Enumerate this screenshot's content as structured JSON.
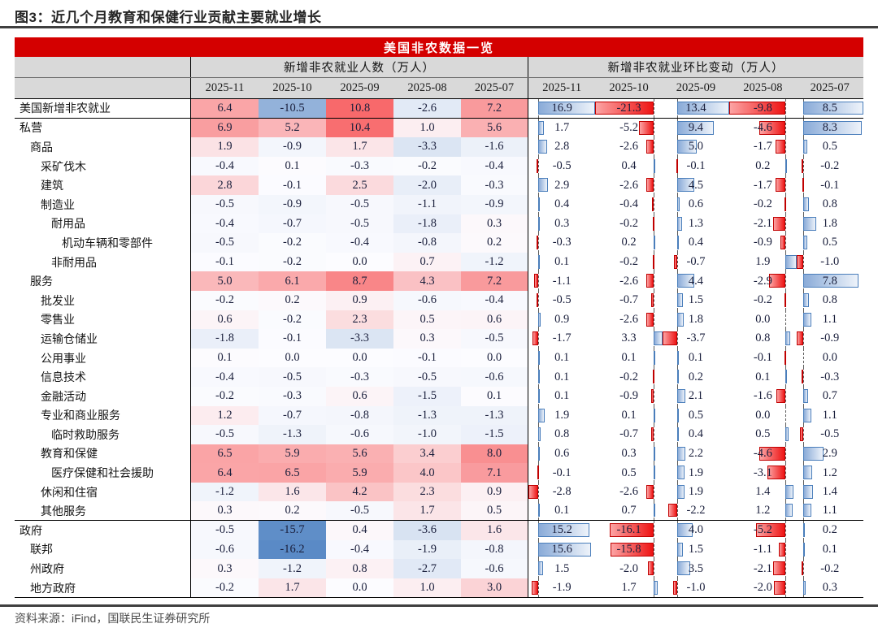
{
  "figure_title": "图3：近几个月教育和保健行业贡献主要就业增长",
  "source_note": "资料来源：iFind，国联民生证券研究所",
  "chart_data": {
    "type": "table",
    "title": "美国非农数据一览",
    "column_groups": [
      {
        "label": "新增非农就业人数（万人）",
        "months": [
          "2025-11",
          "2025-10",
          "2025-09",
          "2025-08",
          "2025-07"
        ]
      },
      {
        "label": "新增非农就业环比变动（万人）",
        "months": [
          "2025-11",
          "2025-10",
          "2025-09",
          "2025-08",
          "2025-07"
        ]
      }
    ],
    "rows": [
      {
        "label": "美国新增非农就业",
        "indent": 0,
        "counts": [
          6.4,
          -10.5,
          10.8,
          -2.6,
          7.2
        ],
        "changes": [
          16.9,
          -21.3,
          13.4,
          -9.8,
          8.5
        ]
      },
      {
        "label": "私营",
        "indent": 0,
        "counts": [
          6.9,
          5.2,
          10.4,
          1.0,
          5.6
        ],
        "changes": [
          1.7,
          -5.2,
          9.4,
          -4.6,
          8.3
        ]
      },
      {
        "label": "商品",
        "indent": 1,
        "counts": [
          1.9,
          -0.9,
          1.7,
          -3.3,
          -1.6
        ],
        "changes": [
          2.8,
          -2.6,
          5.0,
          -1.7,
          0.5
        ]
      },
      {
        "label": "采矿伐木",
        "indent": 2,
        "counts": [
          -0.4,
          0.1,
          -0.3,
          -0.2,
          -0.4
        ],
        "changes": [
          -0.5,
          0.4,
          -0.1,
          0.2,
          -0.2
        ]
      },
      {
        "label": "建筑",
        "indent": 2,
        "counts": [
          2.8,
          -0.1,
          2.5,
          -2.0,
          -0.3
        ],
        "changes": [
          2.9,
          -2.6,
          4.5,
          -1.7,
          -0.1
        ]
      },
      {
        "label": "制造业",
        "indent": 2,
        "counts": [
          -0.5,
          -0.9,
          -0.5,
          -1.1,
          -0.9
        ],
        "changes": [
          0.4,
          -0.4,
          0.6,
          -0.2,
          0.8
        ]
      },
      {
        "label": "耐用品",
        "indent": 3,
        "counts": [
          -0.4,
          -0.7,
          -0.5,
          -1.8,
          0.3
        ],
        "changes": [
          0.3,
          -0.2,
          1.3,
          -2.1,
          1.8
        ]
      },
      {
        "label": "机动车辆和零部件",
        "indent": 4,
        "counts": [
          -0.5,
          -0.2,
          -0.4,
          -0.8,
          0.2
        ],
        "changes": [
          -0.3,
          0.2,
          0.4,
          -0.9,
          0.5
        ]
      },
      {
        "label": "非耐用品",
        "indent": 3,
        "counts": [
          -0.1,
          -0.2,
          0.0,
          0.7,
          -1.2
        ],
        "changes": [
          0.1,
          -0.2,
          -0.7,
          1.9,
          -1.0
        ]
      },
      {
        "label": "服务",
        "indent": 1,
        "counts": [
          5.0,
          6.1,
          8.7,
          4.3,
          7.2
        ],
        "changes": [
          -1.1,
          -2.6,
          4.4,
          -2.9,
          7.8
        ]
      },
      {
        "label": "批发业",
        "indent": 2,
        "counts": [
          -0.2,
          0.2,
          0.9,
          -0.6,
          -0.4
        ],
        "changes": [
          -0.5,
          -0.7,
          1.5,
          -0.2,
          0.8
        ]
      },
      {
        "label": "零售业",
        "indent": 2,
        "counts": [
          0.6,
          -0.2,
          2.3,
          0.5,
          0.6
        ],
        "changes": [
          0.9,
          -2.6,
          1.8,
          0.0,
          1.1
        ]
      },
      {
        "label": "运输仓储业",
        "indent": 2,
        "counts": [
          -1.8,
          -0.1,
          -3.3,
          0.3,
          -0.5
        ],
        "changes": [
          -1.7,
          3.3,
          -3.7,
          0.8,
          -0.9
        ]
      },
      {
        "label": "公用事业",
        "indent": 2,
        "counts": [
          0.1,
          0.0,
          0.0,
          -0.1,
          0.0
        ],
        "changes": [
          0.1,
          0.1,
          0.1,
          -0.1,
          0.0
        ]
      },
      {
        "label": "信息技术",
        "indent": 2,
        "counts": [
          -0.4,
          -0.5,
          -0.3,
          -0.5,
          -0.6
        ],
        "changes": [
          0.1,
          -0.2,
          0.2,
          0.1,
          -0.3
        ]
      },
      {
        "label": "金融活动",
        "indent": 2,
        "counts": [
          -0.2,
          -0.3,
          0.6,
          -1.5,
          0.1
        ],
        "changes": [
          0.1,
          -0.9,
          2.1,
          -1.6,
          0.7
        ]
      },
      {
        "label": "专业和商业服务",
        "indent": 2,
        "counts": [
          1.2,
          -0.7,
          -0.8,
          -1.3,
          -1.3
        ],
        "changes": [
          1.9,
          0.1,
          0.5,
          0.0,
          1.1
        ]
      },
      {
        "label": "临时救助服务",
        "indent": 3,
        "counts": [
          -0.5,
          -1.3,
          -0.6,
          -1.0,
          -1.5
        ],
        "changes": [
          0.8,
          -0.7,
          0.4,
          0.5,
          -0.5
        ]
      },
      {
        "label": "教育和保健",
        "indent": 2,
        "counts": [
          6.5,
          5.9,
          5.6,
          3.4,
          8.0
        ],
        "changes": [
          0.6,
          0.3,
          2.2,
          -4.6,
          2.9
        ]
      },
      {
        "label": "医疗保健和社会援助",
        "indent": 3,
        "counts": [
          6.4,
          6.5,
          5.9,
          4.0,
          7.1
        ],
        "changes": [
          -0.1,
          0.5,
          1.9,
          -3.1,
          1.2
        ]
      },
      {
        "label": "休闲和住宿",
        "indent": 2,
        "counts": [
          -1.2,
          1.6,
          4.2,
          2.3,
          0.9
        ],
        "changes": [
          -2.8,
          -2.6,
          1.9,
          1.4,
          1.4
        ]
      },
      {
        "label": "其他服务",
        "indent": 2,
        "counts": [
          0.3,
          0.2,
          -0.5,
          1.7,
          0.5
        ],
        "changes": [
          0.1,
          0.7,
          -2.2,
          1.2,
          1.1
        ]
      },
      {
        "label": "政府",
        "indent": 0,
        "counts": [
          -0.5,
          -15.7,
          0.4,
          -3.6,
          1.6
        ],
        "changes": [
          15.2,
          -16.1,
          4.0,
          -5.2,
          0.2
        ]
      },
      {
        "label": "联邦",
        "indent": 1,
        "counts": [
          -0.6,
          -16.2,
          -0.4,
          -1.9,
          -0.8
        ],
        "changes": [
          15.6,
          -15.8,
          1.5,
          -1.1,
          0.1
        ]
      },
      {
        "label": "州政府",
        "indent": 1,
        "counts": [
          0.3,
          -1.2,
          0.8,
          -2.7,
          -0.6
        ],
        "changes": [
          1.5,
          -2.0,
          3.5,
          -2.1,
          -0.2
        ]
      },
      {
        "label": "地方政府",
        "indent": 1,
        "counts": [
          -0.2,
          1.7,
          0.0,
          1.0,
          3.0
        ],
        "changes": [
          -1.9,
          1.7,
          -1.0,
          -2.0,
          0.3
        ]
      }
    ],
    "section_lines_after_rows": [
      0,
      21
    ],
    "layout": {
      "heatmap_scale": "global",
      "databar_axis": "automatic",
      "gridlines": false
    },
    "colors": {
      "banner_red": "#D40000",
      "header_bg": "#D9D9D9",
      "heat_max_red": "#F8696B",
      "heat_mid_white": "#FCFCFF",
      "heat_min_blue": "#5A8AC6",
      "bar_positive_blue": "#8AABD8",
      "bar_positive_border": "#4A7EBB",
      "bar_negative_red": "#EE1414",
      "bar_negative_border": "#C00000"
    }
  }
}
